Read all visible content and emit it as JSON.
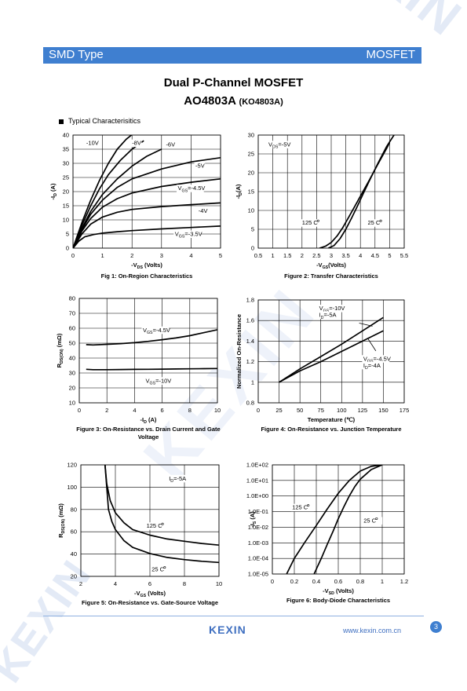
{
  "header": {
    "left": "SMD Type",
    "right": "MOSFET"
  },
  "title": {
    "line1": "Dual P-Channel MOSFET",
    "part": "AO4803A",
    "alt_part": "(KO4803A)"
  },
  "section": {
    "label": "Typical  Characterisitics"
  },
  "footer": {
    "logo": "KEXIN",
    "website": "www.kexin.com.cn",
    "page": "3"
  },
  "colors": {
    "brand": "#3f7fd0",
    "curve": "#000000",
    "grid": "#000000"
  },
  "chart_data": [
    {
      "id": "fig1",
      "type": "line",
      "title": "Fig 1: On-Region Characteristics",
      "xlabel": "-V",
      "xlabel_sub": "DS",
      "xlabel_tail": " (Volts)",
      "ylabel": "-I",
      "ylabel_sub": "D",
      "ylabel_tail": " (A)",
      "xlim": [
        0,
        5
      ],
      "ylim": [
        0,
        40
      ],
      "xticks": [
        0,
        1,
        2,
        3,
        4,
        5
      ],
      "yticks": [
        0,
        5,
        10,
        15,
        20,
        25,
        30,
        35,
        40
      ],
      "xtick_labels": [
        "0",
        "1",
        "2",
        "3",
        "4",
        "5"
      ],
      "ytick_labels": [
        "0",
        "5",
        "10",
        "15",
        "20",
        "25",
        "30",
        "35",
        "40"
      ],
      "series": [
        {
          "name": "-10V",
          "x": [
            0,
            0.3,
            0.6,
            0.9,
            1.2,
            1.5,
            1.8,
            2.1
          ],
          "y": [
            0,
            9,
            17,
            24,
            30,
            35,
            38.5,
            41
          ]
        },
        {
          "name": "-8V",
          "x": [
            0,
            0.3,
            0.6,
            0.9,
            1.2,
            1.6,
            2.0,
            2.4
          ],
          "y": [
            0,
            8,
            15,
            21,
            26,
            31,
            35,
            38
          ]
        },
        {
          "name": "-6V",
          "x": [
            0,
            0.3,
            0.6,
            1.0,
            1.5,
            2.0,
            2.5,
            3.0
          ],
          "y": [
            0,
            7,
            13,
            19,
            24.5,
            29,
            32.5,
            35
          ]
        },
        {
          "name": "-5V",
          "x": [
            0,
            0.3,
            0.6,
            1.0,
            1.5,
            2.0,
            3.0,
            4.0,
            5.0
          ],
          "y": [
            0,
            6.5,
            12,
            17,
            21.5,
            24.5,
            28,
            30.5,
            32
          ]
        },
        {
          "name": "-4.5V",
          "x": [
            0,
            0.3,
            0.6,
            1.0,
            1.5,
            2.0,
            3.0,
            4.0,
            5.0
          ],
          "y": [
            0,
            6,
            10.5,
            14.5,
            17.5,
            19.5,
            21.8,
            23.3,
            24.5
          ]
        },
        {
          "name": "-4V",
          "x": [
            0,
            0.3,
            0.6,
            1.0,
            1.5,
            2.0,
            3.0,
            4.0,
            5.0
          ],
          "y": [
            0,
            5,
            8.5,
            11,
            12.7,
            13.7,
            14.7,
            15.4,
            16
          ]
        },
        {
          "name": "-3.5V",
          "x": [
            0,
            0.2,
            0.4,
            0.7,
            1.0,
            1.5,
            2.0,
            3.0,
            4.0,
            5.0
          ],
          "y": [
            0,
            2.5,
            4,
            4.8,
            5.3,
            5.8,
            6.2,
            6.8,
            7.3,
            7.8
          ]
        }
      ],
      "labels": [
        {
          "text": "-10V",
          "x": 0.45,
          "y": 36.5
        },
        {
          "text": "-8V",
          "x": 2.0,
          "y": 36.5
        },
        {
          "text": "-6V",
          "x": 3.15,
          "y": 36
        },
        {
          "text": "-5V",
          "x": 4.15,
          "y": 28.5
        },
        {
          "text": "V",
          "sub": "GS",
          "tail": "=-4.5V",
          "x": 3.55,
          "y": 20.5
        },
        {
          "text": "-4V",
          "x": 4.25,
          "y": 12.5
        },
        {
          "text": "V",
          "sub": "GS",
          "tail": "=-3.5V",
          "x": 3.45,
          "y": 4.3
        }
      ]
    },
    {
      "id": "fig2",
      "type": "line",
      "title": "Figure 2: Transfer Characteristics",
      "xlabel": "-V",
      "xlabel_sub": "GS",
      "xlabel_tail": "(Volts)",
      "ylabel": "-I",
      "ylabel_sub": "D",
      "ylabel_tail": "(A)",
      "xlim": [
        0.5,
        5.5
      ],
      "ylim": [
        0,
        30
      ],
      "xticks": [
        0.5,
        1,
        1.5,
        2,
        2.5,
        3,
        3.5,
        4,
        4.5,
        5,
        5.5
      ],
      "yticks": [
        0,
        5,
        10,
        15,
        20,
        25,
        30
      ],
      "xtick_labels": [
        "0.5",
        "1",
        "1.5",
        "2",
        "2.5",
        "3",
        "3.5",
        "4",
        "4.5",
        "5",
        "5.5"
      ],
      "ytick_labels": [
        "0",
        "5",
        "10",
        "15",
        "20",
        "25",
        "30"
      ],
      "series": [
        {
          "name": "125°C",
          "x": [
            2.6,
            2.8,
            3.0,
            3.2,
            3.4,
            3.6,
            3.8,
            4.0,
            4.3,
            4.6,
            4.9,
            5.0
          ],
          "y": [
            0,
            0.5,
            1.5,
            3.2,
            5.5,
            8.2,
            11,
            13.8,
            18,
            22.3,
            26.5,
            28
          ]
        },
        {
          "name": "25°C",
          "x": [
            2.9,
            3.1,
            3.3,
            3.5,
            3.7,
            3.9,
            4.1,
            4.3,
            4.6,
            4.9,
            5.15
          ],
          "y": [
            0,
            0.7,
            2.5,
            5,
            8,
            11.2,
            14.5,
            17.8,
            22.5,
            27,
            30
          ]
        }
      ],
      "labels": [
        {
          "text": "V",
          "sub": "DS",
          "tail": "=-5V",
          "x": 0.85,
          "y": 27
        },
        {
          "text": "125   C",
          "x": 2.0,
          "y": 6.2
        },
        {
          "text": "25   C",
          "x": 4.25,
          "y": 6.2
        }
      ]
    },
    {
      "id": "fig3",
      "type": "line",
      "title": "Figure 3: On-Resistance vs. Drain Current and Gate",
      "title2": "Voltage",
      "xlabel": "-I",
      "xlabel_sub": "D",
      "xlabel_tail": " (A)",
      "ylabel": "R",
      "ylabel_sub": "DS(ON)",
      "ylabel_tail": " (mΩ)",
      "xlim": [
        0,
        10
      ],
      "ylim": [
        10,
        80
      ],
      "xticks": [
        0,
        2,
        4,
        6,
        8,
        10
      ],
      "yticks": [
        10,
        20,
        30,
        40,
        50,
        60,
        70,
        80
      ],
      "xtick_labels": [
        "0",
        "2",
        "4",
        "6",
        "8",
        "10"
      ],
      "ytick_labels": [
        "10",
        "20",
        "30",
        "40",
        "50",
        "60",
        "70",
        "80"
      ],
      "series": [
        {
          "name": "VGS=-4.5V",
          "x": [
            0.5,
            1,
            2,
            3,
            4,
            5,
            6,
            7,
            8,
            9,
            10
          ],
          "y": [
            49,
            48.8,
            49.2,
            49.7,
            50.3,
            51.2,
            52.3,
            53.5,
            55,
            57,
            59
          ]
        },
        {
          "name": "VGS=-10V",
          "x": [
            0.5,
            1,
            2,
            3,
            4,
            5,
            6,
            7,
            8,
            9,
            10
          ],
          "y": [
            32.5,
            32.2,
            32.2,
            32.3,
            32.4,
            32.5,
            32.6,
            32.7,
            32.8,
            32.9,
            33
          ]
        }
      ],
      "labels": [
        {
          "text": "V",
          "sub": "GS",
          "tail": "=-4.5V",
          "x": 4.6,
          "y": 57.5
        },
        {
          "text": "V",
          "sub": "GS",
          "tail": "=-10V",
          "x": 4.8,
          "y": 23.5
        }
      ]
    },
    {
      "id": "fig4",
      "type": "line",
      "title": "Figure 4: On-Resistance vs. Junction Temperature",
      "xlabel": "Temperature (℃)",
      "ylabel": "Normalized On-Resistance",
      "xlim": [
        0,
        175
      ],
      "ylim": [
        0.8,
        1.8
      ],
      "xticks": [
        0,
        25,
        50,
        75,
        100,
        125,
        150,
        175
      ],
      "yticks": [
        0.8,
        1,
        1.2,
        1.4,
        1.6,
        1.8
      ],
      "xtick_labels": [
        "0",
        "25",
        "50",
        "75",
        "100",
        "125",
        "150",
        "175"
      ],
      "ytick_labels": [
        "0.8",
        "1",
        "1.2",
        "1.4",
        "1.6",
        "1.8"
      ],
      "series": [
        {
          "name": "VGS=-10V ID=-5A",
          "x": [
            25,
            50,
            75,
            100,
            125,
            150
          ],
          "y": [
            1.0,
            1.13,
            1.25,
            1.37,
            1.5,
            1.63
          ]
        },
        {
          "name": "VGS=-4.5V ID=-4A",
          "x": [
            25,
            50,
            75,
            100,
            125,
            150
          ],
          "y": [
            1.0,
            1.11,
            1.2,
            1.3,
            1.4,
            1.5
          ]
        }
      ],
      "labels": [
        {
          "text": "V",
          "sub": "GS",
          "tail": "=-10V",
          "x": 73,
          "y": 1.7
        },
        {
          "text": "I",
          "sub": "D",
          "tail": "=-5A",
          "x": 73,
          "y": 1.635
        },
        {
          "text": "V",
          "sub": "GS",
          "tail": "=-4.5V",
          "x": 126,
          "y": 1.21
        },
        {
          "text": "I",
          "sub": "D",
          "tail": "=-4A",
          "x": 126,
          "y": 1.145
        }
      ],
      "arrows": [
        {
          "from": [
            121,
            1.575
          ],
          "to": [
            137,
            1.545
          ]
        },
        {
          "from": [
            141,
            1.305
          ],
          "to": [
            131,
            1.43
          ]
        }
      ]
    },
    {
      "id": "fig5",
      "type": "line",
      "title": "Figure 5: On-Resistance vs. Gate-Source Voltage",
      "xlabel": "-V",
      "xlabel_sub": "GS",
      "xlabel_tail": " (Volts)",
      "ylabel": "R",
      "ylabel_sub": "DS(ON)",
      "ylabel_tail": " (mΩ)",
      "xlim": [
        2,
        10
      ],
      "ylim": [
        20,
        120
      ],
      "xticks": [
        2,
        4,
        6,
        8,
        10
      ],
      "yticks": [
        20,
        40,
        60,
        80,
        100,
        120
      ],
      "xtick_labels": [
        "2",
        "4",
        "6",
        "8",
        "10"
      ],
      "ytick_labels": [
        "20",
        "40",
        "60",
        "80",
        "100",
        "120"
      ],
      "series": [
        {
          "name": "125°C",
          "x": [
            3.4,
            3.5,
            3.7,
            4.0,
            4.5,
            5.0,
            6.0,
            7.0,
            8.0,
            9.0,
            10.0
          ],
          "y": [
            120,
            103,
            88,
            77,
            68,
            62,
            57,
            53.5,
            51.5,
            49.5,
            48
          ]
        },
        {
          "name": "25°C",
          "x": [
            3.4,
            3.6,
            3.8,
            4.0,
            4.5,
            5.0,
            6.0,
            7.0,
            8.0,
            9.0,
            10.0
          ],
          "y": [
            120,
            80,
            69,
            62,
            52,
            46,
            40.5,
            37,
            35,
            33.5,
            32.5
          ]
        }
      ],
      "labels": [
        {
          "text": "I",
          "sub": "D",
          "tail": "=-5A",
          "x": 7.1,
          "y": 106
        },
        {
          "text": "125   C",
          "x": 5.8,
          "y": 63.5
        },
        {
          "text": "25   C",
          "x": 6.1,
          "y": 24.5
        }
      ]
    },
    {
      "id": "fig6",
      "type": "line",
      "yscale": "log",
      "title": "Figure 6: Body-Diode Characteristics",
      "xlabel": "-V",
      "xlabel_sub": "SD",
      "xlabel_tail": " (Volts)",
      "ylabel": "-I",
      "ylabel_sub": "S",
      "ylabel_tail": " (A)",
      "xlim": [
        0,
        1.2
      ],
      "ylim": [
        1e-05,
        100
      ],
      "xticks": [
        0,
        0.2,
        0.4,
        0.6,
        0.8,
        1,
        1.2
      ],
      "yticks": [
        1e-05,
        0.0001,
        0.001,
        0.01,
        0.1,
        1,
        10,
        100
      ],
      "xtick_labels": [
        "0",
        "0.2",
        "0.4",
        "0.6",
        "0.8",
        "1",
        "1.2"
      ],
      "ytick_labels": [
        "1.0E-05",
        "1.0E-04",
        "1.0E-03",
        "1.0E-02",
        "1.0E-01",
        "1.0E+00",
        "1.0E+01",
        "1.0E+02"
      ],
      "series": [
        {
          "name": "125°C",
          "x": [
            0.13,
            0.2,
            0.3,
            0.4,
            0.5,
            0.6,
            0.7,
            0.8,
            0.9,
            1.0
          ],
          "y": [
            1e-05,
            0.0001,
            0.0012,
            0.013,
            0.15,
            1.5,
            10,
            40,
            80,
            100
          ]
        },
        {
          "name": "25°C",
          "x": [
            0.38,
            0.45,
            0.5,
            0.55,
            0.6,
            0.65,
            0.7,
            0.75,
            0.8,
            0.9,
            1.0
          ],
          "y": [
            1e-05,
            0.00012,
            0.0008,
            0.005,
            0.035,
            0.2,
            1.0,
            4.0,
            12,
            50,
            100
          ]
        }
      ],
      "labels": [
        {
          "text": "125   C",
          "x": 0.18,
          "y": 0.14
        },
        {
          "text": "25   C",
          "x": 0.83,
          "y": 0.02
        }
      ]
    }
  ]
}
